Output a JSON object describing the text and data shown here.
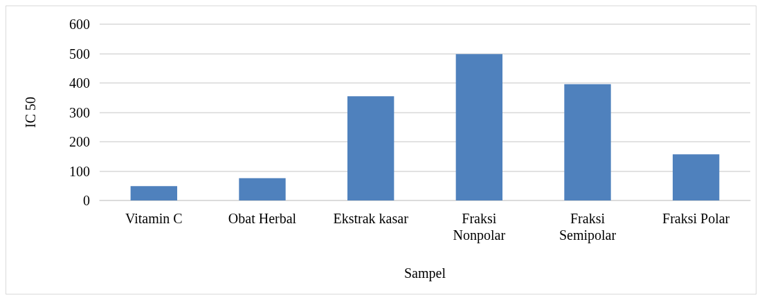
{
  "chart_data": {
    "type": "bar",
    "xlabel": "Sampel",
    "ylabel": "IC 50",
    "categories": [
      "Vitamin C",
      "Obat Herbal",
      "Ekstrak kasar",
      "Fraksi\nNonpolar",
      "Fraksi\nSemipolar",
      "Fraksi Polar"
    ],
    "values": [
      49,
      76,
      355,
      498,
      396,
      157
    ],
    "color": "#4f81bd",
    "ylim": [
      0,
      600
    ],
    "yticks": [
      0,
      100,
      200,
      300,
      400,
      500,
      600
    ],
    "grid": "y"
  }
}
